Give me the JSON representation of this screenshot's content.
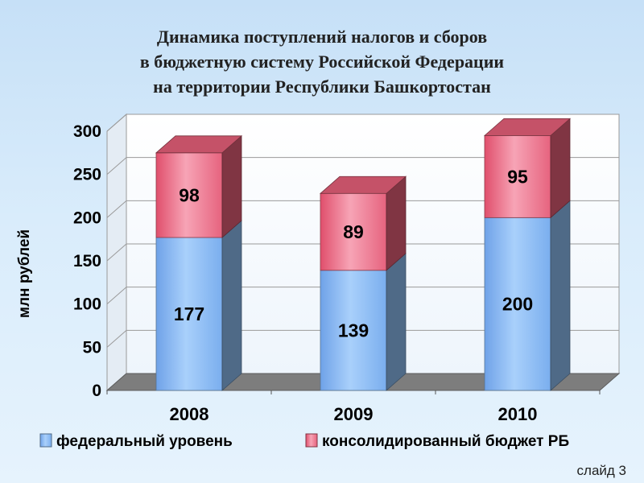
{
  "chart_data": {
    "type": "bar",
    "stacked": true,
    "title_lines": [
      "Динамика поступлений налогов и сборов",
      "в бюджетную систему Российской Федерации",
      "на территории Республики Башкортостан"
    ],
    "ylabel": "млн рублей",
    "categories": [
      "2008",
      "2009",
      "2010"
    ],
    "series": [
      {
        "name": "федеральный уровень",
        "values": [
          177,
          139,
          200
        ],
        "color": "#8fc0f5"
      },
      {
        "name": "консолидированный бюджет РБ",
        "values": [
          98,
          89,
          95
        ],
        "color": "#e8617a"
      }
    ],
    "ylim": [
      0,
      300
    ],
    "yticks": [
      "0",
      "50",
      "100",
      "150",
      "200",
      "250",
      "300"
    ],
    "grid": true,
    "legend_position": "bottom"
  },
  "footer": {
    "slide_label": "слайд 3"
  }
}
